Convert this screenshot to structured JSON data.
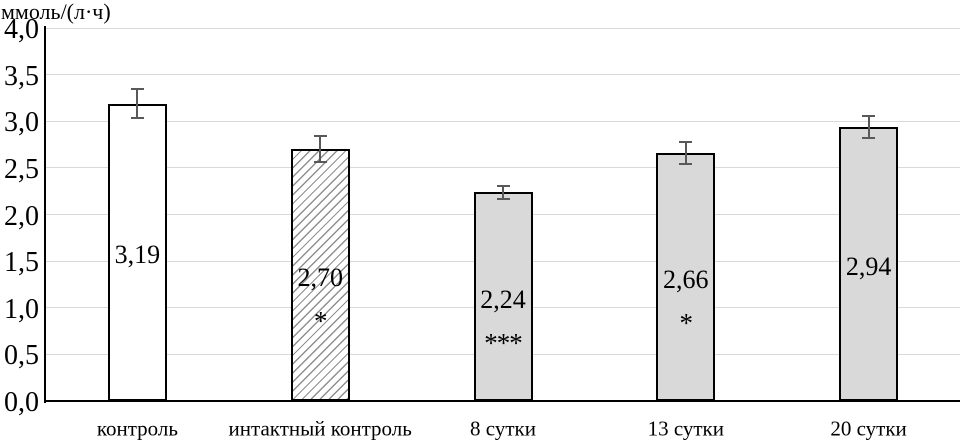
{
  "chart_data": {
    "type": "bar",
    "title": "",
    "ylabel": "ммоль/(л·ч)",
    "xlabel": "",
    "ylim": [
      0,
      4
    ],
    "ytick_step": 0.5,
    "ytick_labels": [
      "0,0",
      "0,5",
      "1,0",
      "1,5",
      "2,0",
      "2,5",
      "3,0",
      "3,5",
      "4,0"
    ],
    "categories": [
      "контроль",
      "интактный контроль",
      "8 сутки",
      "13 сутки",
      "20 сутки"
    ],
    "values": [
      3.19,
      2.7,
      2.24,
      2.66,
      2.94
    ],
    "value_labels": [
      "3,19",
      "2,70",
      "2,24",
      "2,66",
      "2,94"
    ],
    "errors": [
      0.16,
      0.14,
      0.07,
      0.12,
      0.12
    ],
    "significance": [
      "",
      "*",
      "***",
      "*",
      ""
    ],
    "bar_styles": [
      "white",
      "hatched",
      "gray",
      "gray",
      "gray"
    ],
    "grid": true,
    "legend": false,
    "colors": {
      "background": "#ffffff",
      "gridline": "#d9d9d9",
      "axis": "#000000",
      "bar_gray": "#d9d9d9",
      "bar_white": "#ffffff",
      "bar_border": "#000000",
      "hatch_line": "#8f8f8f",
      "error_bar": "#595959",
      "text": "#000000"
    }
  }
}
